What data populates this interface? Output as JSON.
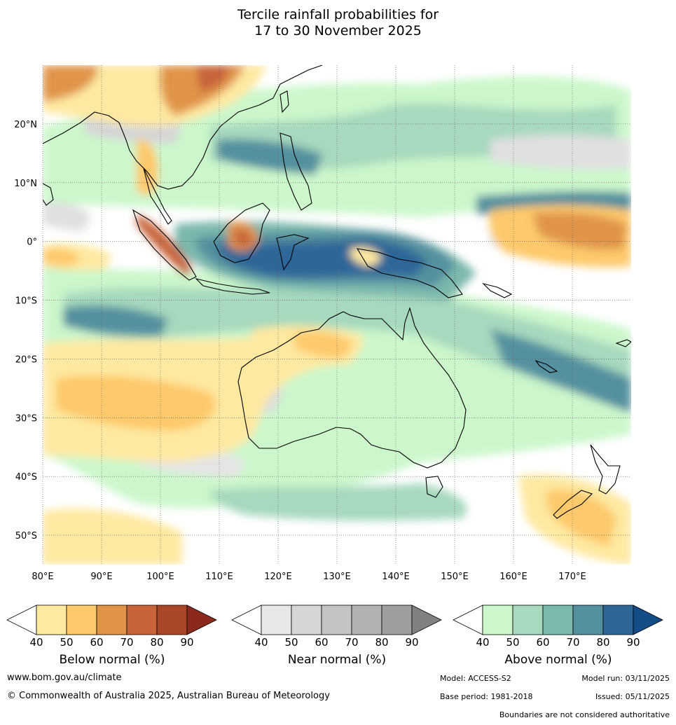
{
  "title": {
    "line1": "Tercile rainfall probabilities for",
    "line2": "17 to 30 November 2025"
  },
  "map": {
    "lon_ticks": [
      "80°E",
      "90°E",
      "100°E",
      "110°E",
      "120°E",
      "130°E",
      "140°E",
      "150°E",
      "160°E",
      "170°E"
    ],
    "lat_ticks": [
      "20°N",
      "10°N",
      "0°",
      "10°S",
      "20°S",
      "30°S",
      "40°S",
      "50°S"
    ],
    "lon_range": [
      80,
      180
    ],
    "lat_range": [
      -55,
      30
    ]
  },
  "legends": [
    {
      "name": "Below normal (%)",
      "ticks": [
        "40",
        "50",
        "60",
        "70",
        "80",
        "90"
      ],
      "colors": [
        "#fee9a0",
        "#fdc96a",
        "#e0944a",
        "#c8643a",
        "#a94628",
        "#8b2a1a"
      ]
    },
    {
      "name": "Near normal (%)",
      "ticks": [
        "40",
        "50",
        "60",
        "70",
        "80",
        "90"
      ],
      "colors": [
        "#e8e8e8",
        "#d6d6d6",
        "#c4c4c4",
        "#b2b2b2",
        "#9e9e9e",
        "#808080"
      ]
    },
    {
      "name": "Above normal (%)",
      "ticks": [
        "40",
        "50",
        "60",
        "70",
        "80",
        "90"
      ],
      "colors": [
        "#ccf7cc",
        "#a6d9bd",
        "#7bb8ad",
        "#55909f",
        "#2e6698",
        "#134c86"
      ]
    }
  ],
  "footer": {
    "website": "www.bom.gov.au/climate",
    "copyright": "© Commonwealth of Australia 2025, Australian Bureau of Meteorology",
    "model": "Model: ACCESS-S2",
    "model_run": "Model run: 03/11/2025",
    "base_period": "Base period: 1981-2018",
    "issued": "Issued: 05/11/2025",
    "disclaimer": "Boundaries are not considered authoritative"
  }
}
